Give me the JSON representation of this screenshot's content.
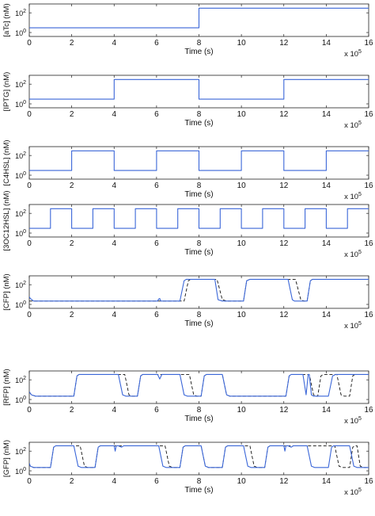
{
  "figure": {
    "xlabel": "Time (s)",
    "x_multiplier_base": "x 10",
    "x_multiplier_exp": "5"
  },
  "colors": {
    "model_line": "#3a66d8",
    "reference_dashed": "#111111",
    "axes": "#222222"
  },
  "chart_data": [
    {
      "type": "line",
      "ylabel": "[aTc] (nM)",
      "xlabel": "Time (s)",
      "xlim": [
        0,
        16
      ],
      "x_ticks": [
        0,
        2,
        4,
        6,
        8,
        10,
        12,
        14,
        16
      ],
      "y_scale": "log",
      "y_ticks": [
        {
          "base": "10",
          "exp": "0",
          "value": 1
        },
        {
          "base": "10",
          "exp": "2",
          "value": 100
        }
      ],
      "series": [
        {
          "style": "solid",
          "color": "#3a66d8",
          "x": [
            0,
            8,
            8,
            16
          ],
          "y": [
            3,
            3,
            300,
            300
          ]
        }
      ]
    },
    {
      "type": "line",
      "ylabel": "[IPTG] (nM)",
      "xlabel": "Time (s)",
      "xlim": [
        0,
        16
      ],
      "x_ticks": [
        0,
        2,
        4,
        6,
        8,
        10,
        12,
        14,
        16
      ],
      "y_scale": "log",
      "y_ticks": [
        {
          "base": "10",
          "exp": "0",
          "value": 1
        },
        {
          "base": "10",
          "exp": "2",
          "value": 100
        }
      ],
      "series": [
        {
          "style": "solid",
          "color": "#3a66d8",
          "x": [
            0,
            4,
            4,
            8,
            8,
            12,
            12,
            16
          ],
          "y": [
            3,
            3,
            300,
            300,
            3,
            3,
            300,
            300
          ]
        }
      ]
    },
    {
      "type": "line",
      "ylabel": "[C4HSL] (nM)",
      "xlabel": "Time (s)",
      "xlim": [
        0,
        16
      ],
      "x_ticks": [
        0,
        2,
        4,
        6,
        8,
        10,
        12,
        14,
        16
      ],
      "y_scale": "log",
      "y_ticks": [
        {
          "base": "10",
          "exp": "0",
          "value": 1
        },
        {
          "base": "10",
          "exp": "2",
          "value": 100
        }
      ],
      "series": [
        {
          "style": "solid",
          "color": "#3a66d8",
          "x": [
            0,
            2,
            2,
            4,
            4,
            6,
            6,
            8,
            8,
            10,
            10,
            12,
            12,
            14,
            14,
            16
          ],
          "y": [
            3,
            3,
            300,
            300,
            3,
            3,
            300,
            300,
            3,
            3,
            300,
            300,
            3,
            3,
            300,
            300
          ]
        }
      ]
    },
    {
      "type": "line",
      "ylabel": "[3OC12HSL] (nM)",
      "xlabel": "Time (s)",
      "xlim": [
        0,
        16
      ],
      "x_ticks": [
        0,
        2,
        4,
        6,
        8,
        10,
        12,
        14,
        16
      ],
      "y_scale": "log",
      "y_ticks": [
        {
          "base": "10",
          "exp": "0",
          "value": 1
        },
        {
          "base": "10",
          "exp": "2",
          "value": 100
        }
      ],
      "series": [
        {
          "style": "solid",
          "color": "#3a66d8",
          "x": [
            0,
            1,
            1,
            2,
            2,
            3,
            3,
            4,
            4,
            5,
            5,
            6,
            6,
            7,
            7,
            8,
            8,
            9,
            9,
            10,
            10,
            11,
            11,
            12,
            12,
            13,
            13,
            14,
            14,
            15,
            15,
            16
          ],
          "y": [
            3,
            3,
            300,
            300,
            3,
            3,
            300,
            300,
            3,
            3,
            300,
            300,
            3,
            3,
            300,
            300,
            3,
            3,
            300,
            300,
            3,
            3,
            300,
            300,
            3,
            3,
            300,
            300,
            3,
            3,
            300,
            300
          ]
        }
      ]
    },
    {
      "type": "line",
      "ylabel": "[CFP] (nM)",
      "xlabel": "Time (s)",
      "xlim": [
        0,
        16
      ],
      "x_ticks": [
        0,
        2,
        4,
        6,
        8,
        10,
        12,
        14,
        16
      ],
      "y_scale": "log",
      "y_ticks": [
        {
          "base": "10",
          "exp": "0",
          "value": 1
        },
        {
          "base": "10",
          "exp": "2",
          "value": 100
        }
      ],
      "series": [
        {
          "style": "solid",
          "color": "#3a66d8",
          "x": [
            0,
            0.05,
            0.2,
            6.05,
            6.1,
            6.15,
            6.2,
            7.1,
            7.3,
            7.4,
            8.75,
            8.9,
            9.1,
            10.1,
            10.25,
            10.4,
            12.2,
            12.4,
            12.5,
            13.1,
            13.25,
            13.35,
            16
          ],
          "y": [
            6,
            4,
            2.2,
            2.2,
            3.5,
            4,
            2.2,
            2.2,
            250,
            350,
            350,
            3,
            2.2,
            2.2,
            250,
            350,
            350,
            3,
            2.2,
            2.2,
            250,
            350,
            350
          ]
        },
        {
          "style": "dashed",
          "color": "#111111",
          "x": [
            0,
            7.3,
            7.5,
            7.6,
            8.85,
            9.1,
            9.3,
            10.1,
            10.25,
            10.4,
            12.55,
            12.8,
            12.95,
            13.1,
            13.25,
            13.35,
            16
          ],
          "y": [
            2.2,
            2.2,
            250,
            350,
            350,
            3,
            2.2,
            2.2,
            250,
            350,
            350,
            3,
            2.2,
            2.2,
            250,
            350,
            350
          ]
        }
      ]
    },
    {
      "type": "line",
      "ylabel": "[RFP] (nM)",
      "xlabel": "Time (s)",
      "xlim": [
        0,
        16
      ],
      "x_ticks": [
        0,
        2,
        4,
        6,
        8,
        10,
        12,
        14,
        16
      ],
      "y_scale": "log",
      "y_ticks": [
        {
          "base": "10",
          "exp": "0",
          "value": 1
        },
        {
          "base": "10",
          "exp": "2",
          "value": 100
        }
      ],
      "series": [
        {
          "style": "solid",
          "color": "#3a66d8",
          "x": [
            0,
            0.1,
            0.3,
            2.1,
            2.25,
            2.35,
            4.2,
            4.4,
            4.55,
            5.1,
            5.25,
            5.35,
            6.05,
            6.15,
            6.25,
            7.1,
            7.3,
            7.45,
            8.1,
            8.25,
            8.35,
            9.1,
            9.3,
            9.45,
            12.1,
            12.25,
            12.35,
            12.9,
            13.05,
            13.15,
            13.2,
            13.3,
            13.4,
            14.1,
            14.3,
            14.45,
            16
          ],
          "y": [
            6,
            3,
            2.2,
            2.2,
            250,
            350,
            350,
            3,
            2.2,
            2.2,
            250,
            350,
            350,
            120,
            350,
            350,
            3,
            2.2,
            2.2,
            250,
            350,
            350,
            3,
            2.2,
            2.2,
            250,
            350,
            350,
            3,
            350,
            350,
            3,
            2.2,
            2.2,
            250,
            350,
            350
          ]
        },
        {
          "style": "dashed",
          "color": "#111111",
          "x": [
            0,
            0.1,
            0.3,
            2.1,
            2.25,
            2.35,
            4.5,
            4.7,
            4.85,
            5.1,
            5.25,
            5.35,
            7.55,
            7.75,
            7.9,
            8.1,
            8.25,
            8.35,
            9.1,
            9.3,
            9.45,
            12.1,
            12.25,
            12.35,
            13.2,
            13.4,
            13.55,
            13.6,
            13.75,
            13.85,
            14.5,
            14.7,
            14.85,
            15.1,
            15.25,
            15.35,
            16
          ],
          "y": [
            6,
            3,
            2.2,
            2.2,
            250,
            350,
            350,
            3,
            2.2,
            2.2,
            250,
            350,
            350,
            3,
            2.2,
            2.2,
            250,
            350,
            350,
            3,
            2.2,
            2.2,
            250,
            350,
            350,
            3,
            2.2,
            2.2,
            250,
            350,
            350,
            3,
            2.2,
            2.2,
            250,
            350,
            350
          ]
        }
      ]
    },
    {
      "type": "line",
      "ylabel": "[GFP] (nM)",
      "xlabel": "Time (s)",
      "xlim": [
        0,
        16
      ],
      "x_ticks": [
        0,
        2,
        4,
        6,
        8,
        10,
        12,
        14,
        16
      ],
      "y_scale": "log",
      "y_ticks": [
        {
          "base": "10",
          "exp": "0",
          "value": 1
        },
        {
          "base": "10",
          "exp": "2",
          "value": 100
        }
      ],
      "series": [
        {
          "style": "solid",
          "color": "#3a66d8",
          "x": [
            0,
            0.05,
            0.2,
            1.0,
            1.15,
            1.25,
            2.1,
            2.3,
            2.45,
            3.1,
            3.25,
            3.35,
            4.0,
            4.05,
            4.1,
            4.2,
            4.35,
            4.45,
            6.1,
            6.3,
            6.45,
            7.1,
            7.25,
            7.35,
            8.1,
            8.3,
            8.45,
            9.1,
            9.25,
            9.35,
            10.1,
            10.3,
            10.45,
            11.1,
            11.25,
            11.35,
            12.0,
            12.05,
            12.1,
            12.2,
            12.35,
            12.45,
            13.1,
            13.3,
            13.45,
            14.1,
            14.25,
            14.35,
            15.1,
            15.3,
            15.45,
            16
          ],
          "y": [
            6,
            3,
            2.2,
            2.2,
            250,
            350,
            350,
            3,
            2.2,
            2.2,
            250,
            350,
            350,
            100,
            350,
            350,
            250,
            350,
            350,
            3,
            2.2,
            2.2,
            250,
            350,
            350,
            3,
            2.2,
            2.2,
            250,
            350,
            350,
            3,
            2.2,
            2.2,
            250,
            350,
            350,
            100,
            350,
            350,
            250,
            350,
            350,
            3,
            2.2,
            2.2,
            250,
            350,
            350,
            3,
            2.2,
            2.2
          ]
        },
        {
          "style": "dashed",
          "color": "#111111",
          "x": [
            0,
            0.05,
            0.2,
            1.0,
            1.15,
            1.25,
            2.4,
            2.6,
            2.75,
            3.1,
            3.25,
            3.35,
            6.4,
            6.6,
            6.75,
            7.1,
            7.25,
            7.35,
            8.1,
            8.3,
            8.45,
            9.1,
            9.25,
            9.35,
            10.4,
            10.6,
            10.75,
            11.1,
            11.25,
            11.35,
            14.4,
            14.6,
            14.75,
            15.1,
            15.25,
            15.35,
            15.45,
            15.6,
            15.75,
            16
          ],
          "y": [
            6,
            3,
            2.2,
            2.2,
            250,
            350,
            350,
            3,
            2.2,
            2.2,
            250,
            350,
            350,
            3,
            2.2,
            2.2,
            250,
            350,
            350,
            3,
            2.2,
            2.2,
            250,
            350,
            350,
            3,
            2.2,
            2.2,
            250,
            350,
            350,
            3,
            2.2,
            2.2,
            250,
            350,
            350,
            3,
            2.2,
            2.2
          ]
        }
      ]
    }
  ]
}
